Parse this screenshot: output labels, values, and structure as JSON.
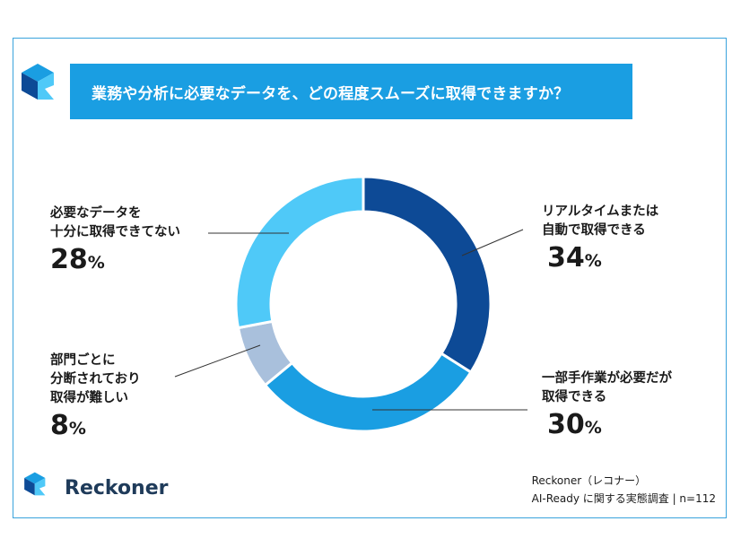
{
  "title": "業務や分析に必要なデータを、どの程度スムーズに取得できますか？",
  "brand": {
    "name": "Reckoner"
  },
  "footnote": {
    "line1": "Reckoner（レコナー）",
    "line2": "AI-Ready に関する実態調査 | n=112"
  },
  "labels": {
    "realtime": {
      "line1": "リアルタイムまたは",
      "line2": "自動で取得できる",
      "pct": "34",
      "unit": "%"
    },
    "partial": {
      "line1": "一部手作業が必要だが",
      "line2": "取得できる",
      "pct": "30",
      "unit": "%"
    },
    "scattered": {
      "line1": "部門ごとに",
      "line2": "分断されており",
      "line3": "取得が難しい",
      "pct": "8",
      "unit": "%"
    },
    "insufficient": {
      "line1": "必要なデータを",
      "line2": "十分に取得できてない",
      "pct": "28",
      "unit": "%"
    }
  },
  "chart_data": {
    "type": "pie",
    "donut": true,
    "categories": [
      "リアルタイムまたは自動で取得できる",
      "一部手作業が必要だが取得できる",
      "部門ごとに分断されており取得が難しい",
      "必要なデータを十分に取得できてない"
    ],
    "values": [
      34,
      30,
      8,
      28
    ],
    "colors": [
      "#0d4a96",
      "#1a9ee2",
      "#a9c0dc",
      "#4fc9f8"
    ],
    "n": 112
  }
}
